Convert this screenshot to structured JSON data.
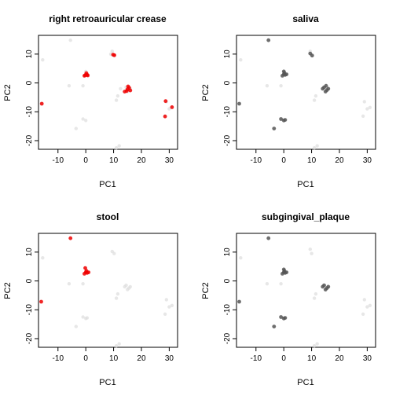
{
  "figure": {
    "panel_titles": [
      "right retroauricular crease",
      "saliva",
      "stool",
      "subgingival_plaque"
    ]
  },
  "chart_data": [
    {
      "type": "scatter",
      "title": "right retroauricular crease",
      "xlabel": "PC1",
      "ylabel": "PC2",
      "xlim": [
        -17,
        33
      ],
      "ylim": [
        -23,
        16.5
      ],
      "xticks": [
        -10,
        0,
        10,
        20,
        30
      ],
      "yticks": [
        -20,
        -10,
        0,
        10
      ],
      "grid": false,
      "legend": "none",
      "background_color": "#dddddd",
      "background_opacity": 0.7,
      "highlight_color": "#ee0000",
      "background_points": [
        [
          -5.5,
          14.8
        ],
        [
          -15.5,
          8
        ],
        [
          -16,
          -7.2
        ],
        [
          -6,
          -1
        ],
        [
          -1,
          -1
        ],
        [
          -3.5,
          -15.8
        ],
        [
          -1,
          -12.5
        ],
        [
          0,
          -13
        ],
        [
          0,
          3
        ],
        [
          0,
          4
        ],
        [
          0.5,
          2.8
        ],
        [
          -0.5,
          2.5
        ],
        [
          9.5,
          11
        ],
        [
          10,
          9.5
        ],
        [
          9,
          10
        ],
        [
          11.5,
          -4.5
        ],
        [
          11,
          -6
        ],
        [
          12.5,
          -2
        ],
        [
          14.5,
          -1.5
        ],
        [
          15.5,
          -2.5
        ],
        [
          15,
          -3
        ],
        [
          16,
          -2
        ],
        [
          11,
          -22.5
        ],
        [
          12,
          -21.8
        ],
        [
          29,
          -6.5
        ],
        [
          31,
          -8.5
        ],
        [
          28.5,
          -11.5
        ],
        [
          30,
          -9
        ]
      ],
      "highlight_points": [
        [
          -15.8,
          -7.2
        ],
        [
          -0.2,
          2.7
        ],
        [
          0.5,
          2.8
        ],
        [
          -0.5,
          2.5
        ],
        [
          0.2,
          3.4
        ],
        [
          0.7,
          2.6
        ],
        [
          9.8,
          9.8
        ],
        [
          10.3,
          9.6
        ],
        [
          14,
          -3
        ],
        [
          14.7,
          -2.8
        ],
        [
          15,
          -2.2
        ],
        [
          15.6,
          -1.7
        ],
        [
          16,
          -2.6
        ],
        [
          15.2,
          -1.2
        ],
        [
          28.7,
          -6.3
        ],
        [
          31,
          -8.4
        ],
        [
          28.5,
          -11.6
        ]
      ]
    },
    {
      "type": "scatter",
      "title": "saliva",
      "xlabel": "PC1",
      "ylabel": "PC2",
      "xlim": [
        -17,
        33
      ],
      "ylim": [
        -23,
        16.5
      ],
      "xticks": [
        -10,
        0,
        10,
        20,
        30
      ],
      "yticks": [
        -20,
        -10,
        0,
        10
      ],
      "grid": false,
      "legend": "none",
      "background_color": "#dddddd",
      "background_opacity": 0.7,
      "highlight_color": "#555555",
      "background_points": [
        [
          -15.5,
          8
        ],
        [
          -6,
          -1
        ],
        [
          -1,
          -1
        ],
        [
          29,
          -6.5
        ],
        [
          31,
          -8.5
        ],
        [
          28.5,
          -11.5
        ],
        [
          30,
          -9
        ],
        [
          11,
          -22.5
        ],
        [
          12,
          -21.8
        ],
        [
          11.5,
          -4.5
        ],
        [
          11,
          -6
        ],
        [
          9.5,
          11
        ],
        [
          10,
          9.5
        ]
      ],
      "highlight_points": [
        [
          -5.5,
          14.8
        ],
        [
          -16,
          -7.2
        ],
        [
          -3.5,
          -15.8
        ],
        [
          -1,
          -12.5
        ],
        [
          0,
          -13
        ],
        [
          0.5,
          -12.8
        ],
        [
          0,
          3
        ],
        [
          0,
          4
        ],
        [
          0.5,
          2.8
        ],
        [
          -0.5,
          2.5
        ],
        [
          0.2,
          3.5
        ],
        [
          1,
          3
        ],
        [
          9.5,
          10.2
        ],
        [
          10.2,
          9.5
        ],
        [
          14,
          -2
        ],
        [
          15,
          -3
        ],
        [
          15.5,
          -2.5
        ],
        [
          16,
          -2
        ],
        [
          14.5,
          -1.5
        ],
        [
          15.2,
          -1
        ]
      ]
    },
    {
      "type": "scatter",
      "title": "stool",
      "xlabel": "PC1",
      "ylabel": "PC2",
      "xlim": [
        -17,
        33
      ],
      "ylim": [
        -23,
        16.5
      ],
      "xticks": [
        -10,
        0,
        10,
        20,
        30
      ],
      "yticks": [
        -20,
        -10,
        0,
        10
      ],
      "grid": false,
      "legend": "none",
      "background_color": "#dddddd",
      "background_opacity": 0.7,
      "highlight_color": "#ee0000",
      "background_points": [
        [
          -15.5,
          8
        ],
        [
          -6,
          -1
        ],
        [
          -1,
          -1
        ],
        [
          -3.5,
          -15.8
        ],
        [
          -1,
          -12.5
        ],
        [
          0,
          -13
        ],
        [
          0.5,
          -12.8
        ],
        [
          9.5,
          10.2
        ],
        [
          10.2,
          9.5
        ],
        [
          11.5,
          -4.5
        ],
        [
          11,
          -6
        ],
        [
          14,
          -2
        ],
        [
          15,
          -3
        ],
        [
          15.5,
          -2.5
        ],
        [
          16,
          -2
        ],
        [
          14.5,
          -1.5
        ],
        [
          11,
          -22.5
        ],
        [
          12,
          -21.8
        ],
        [
          29,
          -6.5
        ],
        [
          31,
          -8.5
        ],
        [
          28.5,
          -11.5
        ],
        [
          30,
          -9
        ]
      ],
      "highlight_points": [
        [
          -5.5,
          14.8
        ],
        [
          -16,
          -7.2
        ],
        [
          -0.2,
          4.5
        ],
        [
          0,
          3
        ],
        [
          0.5,
          2.8
        ],
        [
          -0.5,
          2.5
        ],
        [
          0.2,
          3.5
        ],
        [
          1,
          3
        ]
      ]
    },
    {
      "type": "scatter",
      "title": "subgingival_plaque",
      "xlabel": "PC1",
      "ylabel": "PC2",
      "xlim": [
        -17,
        33
      ],
      "ylim": [
        -23,
        16.5
      ],
      "xticks": [
        -10,
        0,
        10,
        20,
        30
      ],
      "yticks": [
        -20,
        -10,
        0,
        10
      ],
      "grid": false,
      "legend": "none",
      "background_color": "#dddddd",
      "background_opacity": 0.7,
      "highlight_color": "#555555",
      "background_points": [
        [
          -15.5,
          8
        ],
        [
          -6,
          -1
        ],
        [
          -1,
          -1
        ],
        [
          29,
          -6.5
        ],
        [
          31,
          -8.5
        ],
        [
          28.5,
          -11.5
        ],
        [
          30,
          -9
        ],
        [
          11,
          -22.5
        ],
        [
          12,
          -21.8
        ],
        [
          11.5,
          -4.5
        ],
        [
          11,
          -6
        ],
        [
          9.5,
          11
        ],
        [
          10,
          9.5
        ]
      ],
      "highlight_points": [
        [
          -5.5,
          14.8
        ],
        [
          -16,
          -7.2
        ],
        [
          -3.5,
          -15.8
        ],
        [
          -1,
          -12.5
        ],
        [
          0,
          -13
        ],
        [
          0.5,
          -12.8
        ],
        [
          0,
          3
        ],
        [
          0,
          4
        ],
        [
          0.5,
          2.8
        ],
        [
          -0.5,
          2.5
        ],
        [
          0.2,
          3.5
        ],
        [
          1,
          3
        ],
        [
          14,
          -2
        ],
        [
          15,
          -3
        ],
        [
          15.5,
          -2.5
        ],
        [
          16,
          -2
        ],
        [
          14.5,
          -1.5
        ]
      ]
    }
  ]
}
